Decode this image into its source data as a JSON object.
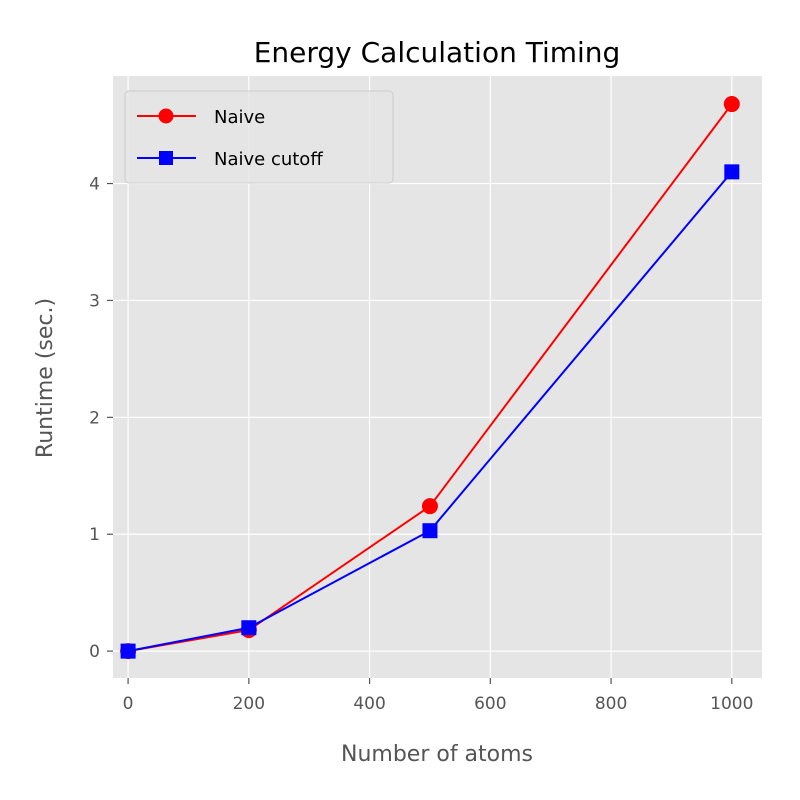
{
  "chart_data": {
    "type": "line",
    "title": "Energy Calculation Timing",
    "xlabel": "Number of atoms",
    "ylabel": "Runtime (sec.)",
    "xlim": [
      -25,
      1050
    ],
    "ylim": [
      -0.23,
      4.92
    ],
    "xticks": [
      0,
      200,
      400,
      600,
      800,
      1000
    ],
    "yticks": [
      0,
      1,
      2,
      3,
      4
    ],
    "xtick_labels": [
      "0",
      "200",
      "400",
      "600",
      "800",
      "1000"
    ],
    "ytick_labels": [
      "0",
      "1",
      "2",
      "3",
      "4"
    ],
    "grid": true,
    "background": "#e5e5e5",
    "legend_position": "top-left",
    "series": [
      {
        "name": "Naive",
        "color": "#ff0000",
        "marker": "circle",
        "x": [
          0,
          200,
          500,
          1000
        ],
        "y": [
          0.0,
          0.18,
          1.24,
          4.68
        ]
      },
      {
        "name": "Naive cutoff",
        "color": "#0000ff",
        "marker": "square",
        "x": [
          0,
          200,
          500,
          1000
        ],
        "y": [
          0.0,
          0.2,
          1.03,
          4.1
        ]
      }
    ]
  }
}
